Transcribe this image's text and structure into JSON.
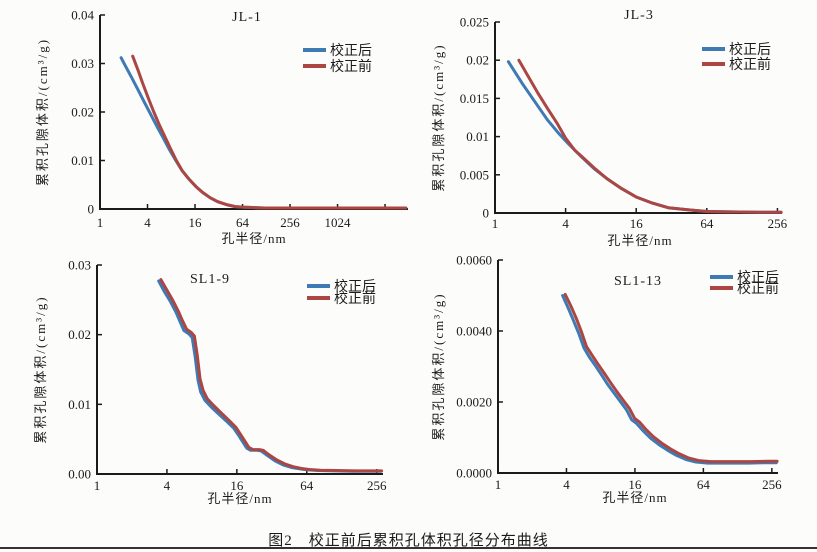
{
  "page": {
    "caption": "图2　校正前后累积孔体积孔径分布曲线"
  },
  "colors": {
    "after": "#3e7ab4",
    "before": "#ab4643",
    "axis": "#1b1b1b",
    "text": "#1b1b1b",
    "background": "#fcfcfb"
  },
  "chart_data": [
    {
      "type": "line",
      "title": "JL-1",
      "xlabel": "孔半径/nm",
      "ylabel": "累积孔隙体积/(cm³/g)",
      "x_scale": "log4",
      "xlim": [
        1,
        8000
      ],
      "ylim": [
        0,
        0.04
      ],
      "grid": false,
      "legend_position": "top-right-inside",
      "x_ticks": [
        {
          "v": 1,
          "label": "1"
        },
        {
          "v": 4,
          "label": "4"
        },
        {
          "v": 16,
          "label": "16"
        },
        {
          "v": 64,
          "label": "64"
        },
        {
          "v": 256,
          "label": "256"
        },
        {
          "v": 1024,
          "label": "1024"
        },
        {
          "v": 4096,
          "label": ""
        }
      ],
      "y_ticks": [
        {
          "v": 0,
          "label": "0"
        },
        {
          "v": 0.01,
          "label": "0.01"
        },
        {
          "v": 0.02,
          "label": "0.02"
        },
        {
          "v": 0.03,
          "label": "0.03"
        },
        {
          "v": 0.04,
          "label": "0.04"
        }
      ],
      "series": [
        {
          "name": "校正后",
          "key": "after",
          "points": [
            [
              1.85,
              0.0312
            ],
            [
              2.1,
              0.0295
            ],
            [
              2.5,
              0.0272
            ],
            [
              3.0,
              0.0247
            ],
            [
              3.6,
              0.0222
            ],
            [
              4.3,
              0.0198
            ],
            [
              5.2,
              0.0172
            ],
            [
              6.3,
              0.0147
            ],
            [
              7.6,
              0.0122
            ],
            [
              9.2,
              0.0099
            ],
            [
              11,
              0.0079
            ],
            [
              13.5,
              0.0061
            ],
            [
              16.5,
              0.0046
            ],
            [
              20,
              0.0034
            ],
            [
              25,
              0.0023
            ],
            [
              31,
              0.0015
            ],
            [
              40,
              0.0009
            ],
            [
              52,
              0.0005
            ],
            [
              64,
              0.0004
            ],
            [
              85,
              0.0003
            ],
            [
              120,
              0.0002
            ],
            [
              256,
              0.0002
            ],
            [
              1024,
              0.0002
            ],
            [
              4000,
              0.0002
            ],
            [
              7500,
              0.0002
            ]
          ]
        },
        {
          "name": "校正前",
          "key": "before",
          "points": [
            [
              2.6,
              0.0315
            ],
            [
              3.0,
              0.0288
            ],
            [
              3.5,
              0.0258
            ],
            [
              4.1,
              0.0228
            ],
            [
              4.8,
              0.02
            ],
            [
              5.6,
              0.0175
            ],
            [
              6.6,
              0.015
            ],
            [
              7.8,
              0.0125
            ],
            [
              9.2,
              0.0101
            ],
            [
              11,
              0.0079
            ],
            [
              13.5,
              0.0061
            ],
            [
              16.5,
              0.0046
            ],
            [
              20,
              0.0034
            ],
            [
              25,
              0.0023
            ],
            [
              31,
              0.0015
            ],
            [
              40,
              0.0009
            ],
            [
              52,
              0.0005
            ],
            [
              64,
              0.0004
            ],
            [
              85,
              0.0003
            ],
            [
              120,
              0.0002
            ],
            [
              256,
              0.0002
            ],
            [
              1024,
              0.0002
            ],
            [
              4000,
              0.0002
            ],
            [
              7500,
              0.0002
            ]
          ]
        }
      ]
    },
    {
      "type": "line",
      "title": "JL-3",
      "xlabel": "孔半径/nm",
      "ylabel": "累积孔隙体积/(cm³/g)",
      "x_scale": "log4",
      "xlim": [
        1,
        280
      ],
      "ylim": [
        0,
        0.025
      ],
      "grid": false,
      "legend_position": "top-right-inside",
      "x_ticks": [
        {
          "v": 1,
          "label": "1"
        },
        {
          "v": 4,
          "label": "4"
        },
        {
          "v": 16,
          "label": "16"
        },
        {
          "v": 64,
          "label": "64"
        },
        {
          "v": 256,
          "label": "256"
        }
      ],
      "y_ticks": [
        {
          "v": 0,
          "label": "0"
        },
        {
          "v": 0.005,
          "label": "0.005"
        },
        {
          "v": 0.01,
          "label": "0.01"
        },
        {
          "v": 0.015,
          "label": "0.015"
        },
        {
          "v": 0.02,
          "label": "0.02"
        },
        {
          "v": 0.025,
          "label": "0.025"
        }
      ],
      "series": [
        {
          "name": "校正后",
          "key": "after",
          "points": [
            [
              1.3,
              0.0198
            ],
            [
              1.7,
              0.017
            ],
            [
              2.2,
              0.0145
            ],
            [
              2.8,
              0.0122
            ],
            [
              3.5,
              0.0104
            ],
            [
              4.2,
              0.0091
            ],
            [
              5.5,
              0.0073
            ],
            [
              7,
              0.0058
            ],
            [
              9,
              0.0045
            ],
            [
              12,
              0.0032
            ],
            [
              16,
              0.0021
            ],
            [
              22,
              0.0013
            ],
            [
              30,
              0.0007
            ],
            [
              45,
              0.0004
            ],
            [
              64,
              0.0002
            ],
            [
              100,
              0.00015
            ],
            [
              180,
              0.0001
            ],
            [
              275,
              0.0001
            ]
          ]
        },
        {
          "name": "校正前",
          "key": "before",
          "points": [
            [
              1.6,
              0.02
            ],
            [
              1.9,
              0.018
            ],
            [
              2.3,
              0.0158
            ],
            [
              2.8,
              0.0137
            ],
            [
              3.4,
              0.0117
            ],
            [
              4.0,
              0.0098
            ],
            [
              4.8,
              0.0082
            ],
            [
              5.5,
              0.0074
            ],
            [
              7,
              0.0059
            ],
            [
              9,
              0.0045
            ],
            [
              12,
              0.0032
            ],
            [
              16,
              0.0021
            ],
            [
              22,
              0.0013
            ],
            [
              30,
              0.0007
            ],
            [
              45,
              0.0004
            ],
            [
              64,
              0.0002
            ],
            [
              100,
              0.00015
            ],
            [
              180,
              0.0001
            ],
            [
              275,
              0.0001
            ]
          ]
        }
      ]
    },
    {
      "type": "line",
      "title": "SL1-9",
      "xlabel": "孔半径/nm",
      "ylabel": "累积孔隙体积/(cm³/g)",
      "x_scale": "log4",
      "xlim": [
        1,
        290
      ],
      "ylim": [
        0,
        0.03
      ],
      "grid": false,
      "legend_position": "top-right-inside",
      "x_ticks": [
        {
          "v": 1,
          "label": "1"
        },
        {
          "v": 4,
          "label": "4"
        },
        {
          "v": 16,
          "label": "16"
        },
        {
          "v": 64,
          "label": "64"
        },
        {
          "v": 256,
          "label": "256"
        }
      ],
      "y_ticks": [
        {
          "v": 0,
          "label": "0.00"
        },
        {
          "v": 0.01,
          "label": "0.01"
        },
        {
          "v": 0.02,
          "label": "0.02"
        },
        {
          "v": 0.03,
          "label": "0.03"
        }
      ],
      "series": [
        {
          "name": "校正后",
          "key": "after",
          "points": [
            [
              3.4,
              0.0277
            ],
            [
              3.8,
              0.0262
            ],
            [
              4.3,
              0.0247
            ],
            [
              4.8,
              0.0232
            ],
            [
              5.2,
              0.0218
            ],
            [
              5.6,
              0.0206
            ],
            [
              6.2,
              0.0201
            ],
            [
              6.6,
              0.0196
            ],
            [
              7.0,
              0.0168
            ],
            [
              7.4,
              0.0135
            ],
            [
              7.8,
              0.0118
            ],
            [
              8.5,
              0.0106
            ],
            [
              9.5,
              0.0097
            ],
            [
              11,
              0.0087
            ],
            [
              13,
              0.0076
            ],
            [
              15,
              0.0066
            ],
            [
              16.5,
              0.0056
            ],
            [
              18,
              0.0046
            ],
            [
              19.5,
              0.0037
            ],
            [
              21,
              0.0034
            ],
            [
              24,
              0.0034
            ],
            [
              26,
              0.0033
            ],
            [
              29,
              0.0027
            ],
            [
              34,
              0.0019
            ],
            [
              40,
              0.0013
            ],
            [
              48,
              0.0009
            ],
            [
              58,
              0.0007
            ],
            [
              64,
              0.0006
            ],
            [
              80,
              0.0005
            ],
            [
              110,
              0.00045
            ],
            [
              160,
              0.0004
            ],
            [
              220,
              0.0004
            ],
            [
              278,
              0.0004
            ]
          ]
        },
        {
          "name": "校正前",
          "key": "before",
          "points": [
            [
              3.55,
              0.0279
            ],
            [
              4.0,
              0.0264
            ],
            [
              4.5,
              0.0249
            ],
            [
              5.0,
              0.0234
            ],
            [
              5.45,
              0.022
            ],
            [
              5.9,
              0.0208
            ],
            [
              6.5,
              0.0203
            ],
            [
              6.9,
              0.0198
            ],
            [
              7.3,
              0.017
            ],
            [
              7.7,
              0.0137
            ],
            [
              8.2,
              0.012
            ],
            [
              8.9,
              0.0108
            ],
            [
              10,
              0.0099
            ],
            [
              11.5,
              0.0089
            ],
            [
              13.5,
              0.0078
            ],
            [
              15.7,
              0.0067
            ],
            [
              17.2,
              0.0057
            ],
            [
              18.8,
              0.0047
            ],
            [
              20.3,
              0.0038
            ],
            [
              22,
              0.0035
            ],
            [
              25,
              0.0035
            ],
            [
              27,
              0.0034
            ],
            [
              30,
              0.0028
            ],
            [
              35.5,
              0.002
            ],
            [
              42,
              0.0014
            ],
            [
              50,
              0.001
            ],
            [
              60,
              0.00075
            ],
            [
              67,
              0.00065
            ],
            [
              84,
              0.00055
            ],
            [
              115,
              0.0005
            ],
            [
              168,
              0.00045
            ],
            [
              230,
              0.00045
            ],
            [
              282,
              0.00045
            ]
          ]
        }
      ]
    },
    {
      "type": "line",
      "title": "SL1-13",
      "xlabel": "孔半径/nm",
      "ylabel": "累积孔隙体积/(cm³/g)",
      "x_scale": "log4",
      "xlim": [
        1,
        290
      ],
      "ylim": [
        0,
        0.006
      ],
      "grid": false,
      "legend_position": "top-right-inside",
      "x_ticks": [
        {
          "v": 1,
          "label": "1"
        },
        {
          "v": 4,
          "label": "4"
        },
        {
          "v": 16,
          "label": "16"
        },
        {
          "v": 64,
          "label": "64"
        },
        {
          "v": 256,
          "label": "256"
        }
      ],
      "y_ticks": [
        {
          "v": 0,
          "label": "0.0000"
        },
        {
          "v": 0.002,
          "label": "0.0020"
        },
        {
          "v": 0.004,
          "label": "0.0040"
        },
        {
          "v": 0.006,
          "label": "0.0060"
        }
      ],
      "series": [
        {
          "name": "校正后",
          "key": "after",
          "points": [
            [
              3.7,
              0.005
            ],
            [
              4.1,
              0.00468
            ],
            [
              4.6,
              0.0043
            ],
            [
              5.1,
              0.00395
            ],
            [
              5.7,
              0.00352
            ],
            [
              6.4,
              0.00325
            ],
            [
              7.2,
              0.00302
            ],
            [
              8.2,
              0.00275
            ],
            [
              9.2,
              0.0025
            ],
            [
              10.5,
              0.00225
            ],
            [
              12,
              0.002
            ],
            [
              13.5,
              0.00178
            ],
            [
              15,
              0.0015
            ],
            [
              16.5,
              0.0014
            ],
            [
              19,
              0.00118
            ],
            [
              22,
              0.00098
            ],
            [
              26,
              0.0008
            ],
            [
              31,
              0.00064
            ],
            [
              37,
              0.0005
            ],
            [
              45,
              0.00038
            ],
            [
              55,
              0.00031
            ],
            [
              70,
              0.00028
            ],
            [
              100,
              0.00028
            ],
            [
              160,
              0.00028
            ],
            [
              230,
              0.00029
            ],
            [
              280,
              0.00029
            ]
          ]
        },
        {
          "name": "校正前",
          "key": "before",
          "points": [
            [
              3.9,
              0.00503
            ],
            [
              4.35,
              0.00472
            ],
            [
              4.9,
              0.00434
            ],
            [
              5.4,
              0.00399
            ],
            [
              6.0,
              0.00356
            ],
            [
              6.8,
              0.00329
            ],
            [
              7.6,
              0.00306
            ],
            [
              8.7,
              0.00279
            ],
            [
              9.8,
              0.00254
            ],
            [
              11.1,
              0.00229
            ],
            [
              12.7,
              0.00204
            ],
            [
              14.3,
              0.00182
            ],
            [
              15.9,
              0.00154
            ],
            [
              17.5,
              0.00144
            ],
            [
              20.1,
              0.00122
            ],
            [
              23.3,
              0.00102
            ],
            [
              27.6,
              0.00084
            ],
            [
              32.9,
              0.00068
            ],
            [
              39.2,
              0.00054
            ],
            [
              47.7,
              0.00042
            ],
            [
              58.3,
              0.00035
            ],
            [
              74.2,
              0.00032
            ],
            [
              106,
              0.00032
            ],
            [
              170,
              0.00032
            ],
            [
              240,
              0.00033
            ],
            [
              285,
              0.00033
            ]
          ]
        }
      ]
    }
  ]
}
